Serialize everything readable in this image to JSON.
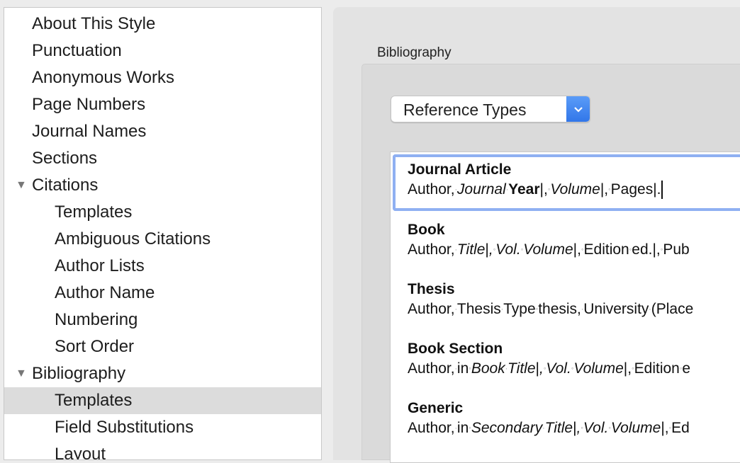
{
  "sidebar": {
    "items": [
      {
        "label": "About This Style",
        "level": 0
      },
      {
        "label": "Punctuation",
        "level": 0
      },
      {
        "label": "Anonymous Works",
        "level": 0
      },
      {
        "label": "Page Numbers",
        "level": 0
      },
      {
        "label": "Journal Names",
        "level": 0
      },
      {
        "label": "Sections",
        "level": 0
      },
      {
        "label": "Citations",
        "level": 0,
        "expanded": true
      },
      {
        "label": "Templates",
        "level": 1
      },
      {
        "label": "Ambiguous Citations",
        "level": 1
      },
      {
        "label": "Author Lists",
        "level": 1
      },
      {
        "label": "Author Name",
        "level": 1
      },
      {
        "label": "Numbering",
        "level": 1
      },
      {
        "label": "Sort Order",
        "level": 1
      },
      {
        "label": "Bibliography",
        "level": 0,
        "expanded": true
      },
      {
        "label": "Templates",
        "level": 1,
        "selected": true
      },
      {
        "label": "Field Substitutions",
        "level": 1
      },
      {
        "label": "Layout",
        "level": 1
      }
    ]
  },
  "main": {
    "section_label": "Bibliography",
    "dropdown": {
      "value": "Reference Types",
      "icon": "chevron-down-icon"
    },
    "accent": "#2f74e8",
    "templates": [
      {
        "title": "Journal Article",
        "selected": true,
        "segments": [
          [
            "Author,",
            ""
          ],
          [
            "·",
            "m"
          ],
          [
            "Journal",
            "i"
          ],
          [
            "·",
            "m"
          ],
          [
            "Year",
            "b"
          ],
          [
            "|,",
            ""
          ],
          [
            "◦",
            "m"
          ],
          [
            "Volume",
            "i"
          ],
          [
            "|,",
            ""
          ],
          [
            "◦",
            "m"
          ],
          [
            "Pages|.",
            ""
          ]
        ]
      },
      {
        "title": "Book",
        "segments": [
          [
            "Author,",
            ""
          ],
          [
            "·",
            "m"
          ],
          [
            "Title",
            "i"
          ],
          [
            "|",
            ""
          ],
          [
            ",",
            "i"
          ],
          [
            "◦",
            "m"
          ],
          [
            "Vol.",
            "i"
          ],
          [
            "◦",
            "m"
          ],
          [
            "Volume",
            "i"
          ],
          [
            "|,",
            ""
          ],
          [
            "◦",
            "m"
          ],
          [
            "Edition",
            ""
          ],
          [
            "◦",
            "m"
          ],
          [
            "ed.|,",
            ""
          ],
          [
            "◦",
            "m"
          ],
          [
            "Pub",
            ""
          ]
        ]
      },
      {
        "title": "Thesis",
        "segments": [
          [
            "Author,",
            ""
          ],
          [
            "·",
            "m"
          ],
          [
            "Thesis",
            ""
          ],
          [
            "·",
            "m"
          ],
          [
            "Type",
            ""
          ],
          [
            "◦",
            "m"
          ],
          [
            "thesis,",
            ""
          ],
          [
            "·",
            "m"
          ],
          [
            "University",
            ""
          ],
          [
            "·",
            "m"
          ],
          [
            "(Place",
            ""
          ]
        ]
      },
      {
        "title": "Book Section",
        "segments": [
          [
            "Author,",
            ""
          ],
          [
            "·",
            "m"
          ],
          [
            "in",
            ""
          ],
          [
            "◦",
            "m"
          ],
          [
            "Book",
            "i"
          ],
          [
            "·",
            "m"
          ],
          [
            "Title",
            "i"
          ],
          [
            "|",
            ""
          ],
          [
            ",",
            "i"
          ],
          [
            "◦",
            "m"
          ],
          [
            "Vol.",
            "i"
          ],
          [
            "◦",
            "m"
          ],
          [
            "Volume",
            "i"
          ],
          [
            "|,",
            ""
          ],
          [
            "◦",
            "m"
          ],
          [
            "Edition",
            ""
          ],
          [
            "◦",
            "m"
          ],
          [
            "e",
            ""
          ]
        ]
      },
      {
        "title": "Generic",
        "segments": [
          [
            "Author,",
            ""
          ],
          [
            "·",
            "m"
          ],
          [
            "in",
            ""
          ],
          [
            "◦",
            "m"
          ],
          [
            "Secondary",
            "i"
          ],
          [
            "·",
            "m"
          ],
          [
            "Title",
            "i"
          ],
          [
            "|",
            ""
          ],
          [
            ",",
            "i"
          ],
          [
            "◦",
            "m"
          ],
          [
            "Vol.",
            "i"
          ],
          [
            "◦",
            "m"
          ],
          [
            "Volume",
            "i"
          ],
          [
            "|,",
            ""
          ],
          [
            "◦",
            "m"
          ],
          [
            "Ed",
            ""
          ]
        ]
      }
    ]
  }
}
